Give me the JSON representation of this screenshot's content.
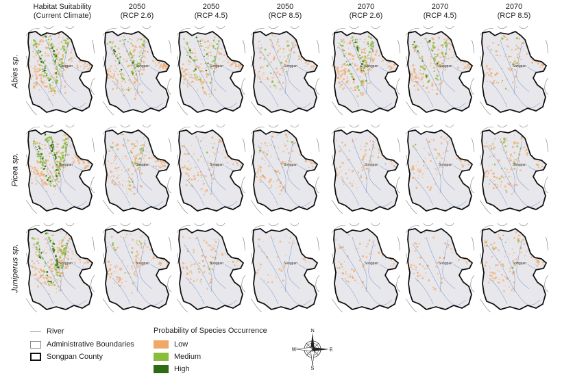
{
  "columns": [
    {
      "line1": "Habitat Suitability",
      "line2": "(Current Climate)"
    },
    {
      "line1": "2050",
      "line2": "(RCP 2.6)"
    },
    {
      "line1": "2050",
      "line2": "(RCP 4.5)"
    },
    {
      "line1": "2050",
      "line2": "(RCP 8.5)"
    },
    {
      "line1": "2070",
      "line2": "(RCP 2.6)"
    },
    {
      "line1": "2070",
      "line2": "(RCP 4.5)"
    },
    {
      "line1": "2070",
      "line2": "(RCP 8.5)"
    }
  ],
  "rows": [
    "Abies sp.",
    "Picea sp.",
    "Juniperus sp."
  ],
  "map_label": "Songpan",
  "legend": {
    "river": "River",
    "admin": "Administrative Boundaries",
    "county": "Songpan County",
    "prob_title": "Probability of Species Occurrence",
    "classes": [
      {
        "label": "Low",
        "color": "#f0a868"
      },
      {
        "label": "Medium",
        "color": "#8bbd3c"
      },
      {
        "label": "High",
        "color": "#2e6a12"
      }
    ]
  },
  "compass": {
    "n": "N",
    "s": "S",
    "e": "E",
    "w": "W"
  },
  "colors": {
    "county_fill": "#e8e8ec",
    "river": "#6a8ac8",
    "admin": "#7a7a7a",
    "county_border": "#111111"
  }
}
